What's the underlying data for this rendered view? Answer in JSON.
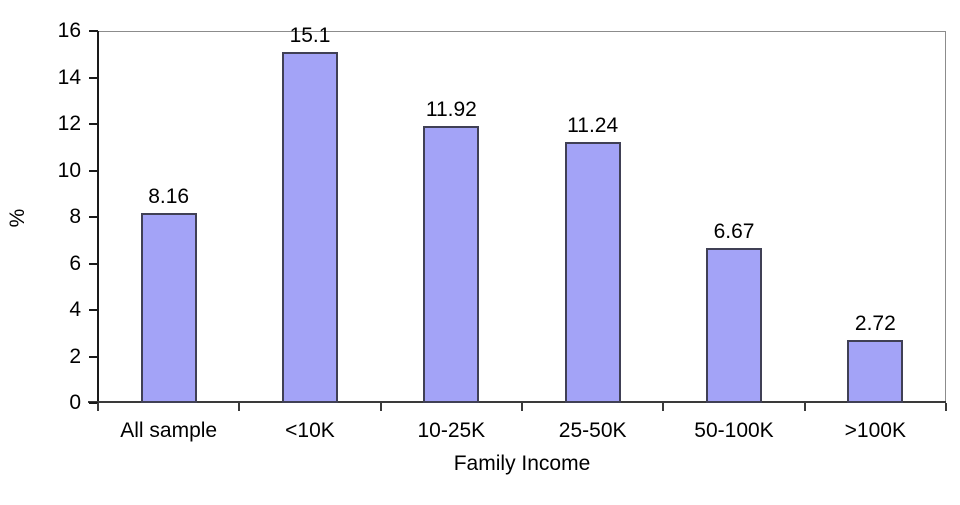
{
  "chart_data": {
    "type": "bar",
    "categories": [
      "All sample",
      "<10K",
      "10-25K",
      "25-50K",
      "50-100K",
      ">100K"
    ],
    "values": [
      8.16,
      15.1,
      11.92,
      11.24,
      6.67,
      2.72
    ],
    "data_labels": [
      "8.16",
      "15.1",
      "11.92",
      "11.24",
      "6.67",
      "2.72"
    ],
    "title": "",
    "xlabel": "Family Income",
    "ylabel": "%",
    "ylim": [
      0,
      16
    ],
    "yticks": [
      0,
      2,
      4,
      6,
      8,
      10,
      12,
      14,
      16
    ],
    "grid": false,
    "legend": "none",
    "colors": {
      "bar_fill": "#a3a3f7",
      "bar_border": "#404055",
      "axis": "#1a1a1a",
      "plot_frame": "#8c8c8c",
      "background": "#ffffff",
      "text": "#000000"
    }
  }
}
